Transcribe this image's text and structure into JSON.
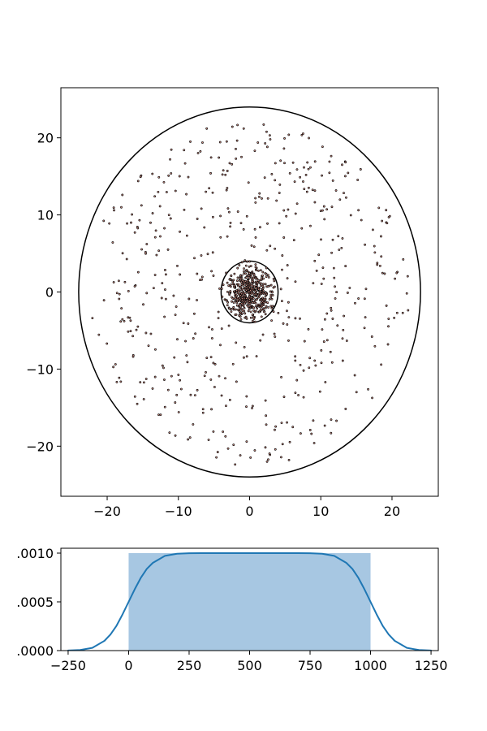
{
  "colors": {
    "frame": "#000000",
    "circle_stroke": "#000000",
    "point_fill": "#c98a80",
    "point_stroke": "#000000",
    "hist_fill": "#a7c7e2",
    "kde_line": "#1f77b4"
  },
  "chart_data": [
    {
      "type": "scatter",
      "title": "",
      "xlabel": "",
      "ylabel": "",
      "xlim": [
        -26.5,
        26.5
      ],
      "ylim": [
        -26.5,
        26.5
      ],
      "xticks": [
        -20,
        -10,
        0,
        10,
        20
      ],
      "yticks": [
        -20,
        -10,
        0,
        10,
        20
      ],
      "xtick_labels": [
        "−20",
        "−10",
        "0",
        "10",
        "20"
      ],
      "ytick_labels": [
        "−20",
        "−10",
        "0",
        "10",
        "20"
      ],
      "grid": false,
      "circles": [
        {
          "cx": 0,
          "cy": 0,
          "r": 24
        },
        {
          "cx": 0,
          "cy": 0,
          "r": 4
        }
      ],
      "series": [
        {
          "distribution": "dense core",
          "center": [
            0,
            0
          ],
          "radius": 4,
          "count": 500
        },
        {
          "distribution": "sparse halo",
          "center": [
            0,
            0
          ],
          "radius": 22.5,
          "count": 520
        }
      ]
    },
    {
      "type": "histogram",
      "title": "",
      "xlabel": "",
      "ylabel": "",
      "xlim": [
        -280,
        1280
      ],
      "ylim": [
        0,
        0.00105
      ],
      "xticks": [
        -250,
        0,
        250,
        500,
        750,
        1000,
        1250
      ],
      "xtick_labels": [
        "−250",
        "0",
        "250",
        "500",
        "750",
        "1000",
        "1250"
      ],
      "yticks": [
        0,
        0.0005,
        0.001
      ],
      "ytick_labels": [
        ".0000",
        ".0005",
        ".0010"
      ],
      "bins": [
        {
          "start": 0,
          "end": 1000,
          "density": 0.001
        }
      ],
      "kde": {
        "x": [
          -250,
          -200,
          -150,
          -100,
          -75,
          -50,
          -25,
          0,
          25,
          50,
          75,
          100,
          150,
          200,
          250,
          300,
          400,
          500,
          600,
          700,
          750,
          800,
          850,
          900,
          925,
          950,
          975,
          1000,
          1025,
          1050,
          1075,
          1100,
          1150,
          1200,
          1250
        ],
        "y": [
          1e-06,
          6e-06,
          2.8e-05,
          0.0001,
          0.000165,
          0.000255,
          0.000372,
          0.0005,
          0.000628,
          0.000745,
          0.000838,
          0.0009,
          0.000972,
          0.000994,
          0.000999,
          0.001,
          0.001,
          0.001,
          0.001,
          0.001,
          0.000999,
          0.000994,
          0.000972,
          0.0009,
          0.000838,
          0.000745,
          0.000628,
          0.0005,
          0.000372,
          0.000255,
          0.000165,
          0.0001,
          2.8e-05,
          6e-06,
          1e-06
        ]
      }
    }
  ]
}
